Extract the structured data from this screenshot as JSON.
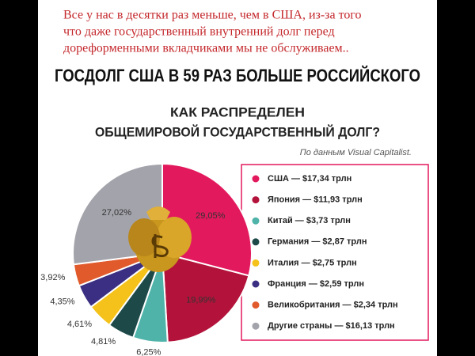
{
  "chart_data": {
    "type": "pie",
    "header_lines": [
      "Все у нас в десятки раз меньше, чем в США, из-за того",
      "что даже государственный внутренний долг перед",
      "дореформенными вкладчиками мы не обслуживаем.."
    ],
    "title": "ГОСДОЛГ США В 59 РАЗ БОЛЬШЕ РОССИЙСКОГО",
    "subtitle": [
      "КАК РАСПРЕДЕЛЕН",
      "ОБЩЕМИРОВОЙ ГОСУДАРСТВЕННЫЙ ДОЛГ?"
    ],
    "source": "По данным Visual Capitalist.",
    "categories": [
      "США — $17,34 трлн",
      "Япония — $11,93 трлн",
      "Китай — $3,73 трлн",
      "Германия — $2,87 трлн",
      "Италия — $2,75 трлн",
      "Франция — $2,59 трлн",
      "Великобритания — $2,34 трлн",
      "Другие страны — $16,13 трлн"
    ],
    "values": [
      29.05,
      19.99,
      6.25,
      4.81,
      4.61,
      4.35,
      3.92,
      27.02
    ],
    "value_labels": [
      "29,05%",
      "19,99%",
      "6,25%",
      "4,81%",
      "4,61%",
      "4,35%",
      "3,92%",
      "27,02%"
    ],
    "colors": [
      "#e3195d",
      "#b3133b",
      "#4fb3aa",
      "#1d4a49",
      "#f4c21a",
      "#3a2f82",
      "#e05a2c",
      "#a3a3ab"
    ]
  }
}
